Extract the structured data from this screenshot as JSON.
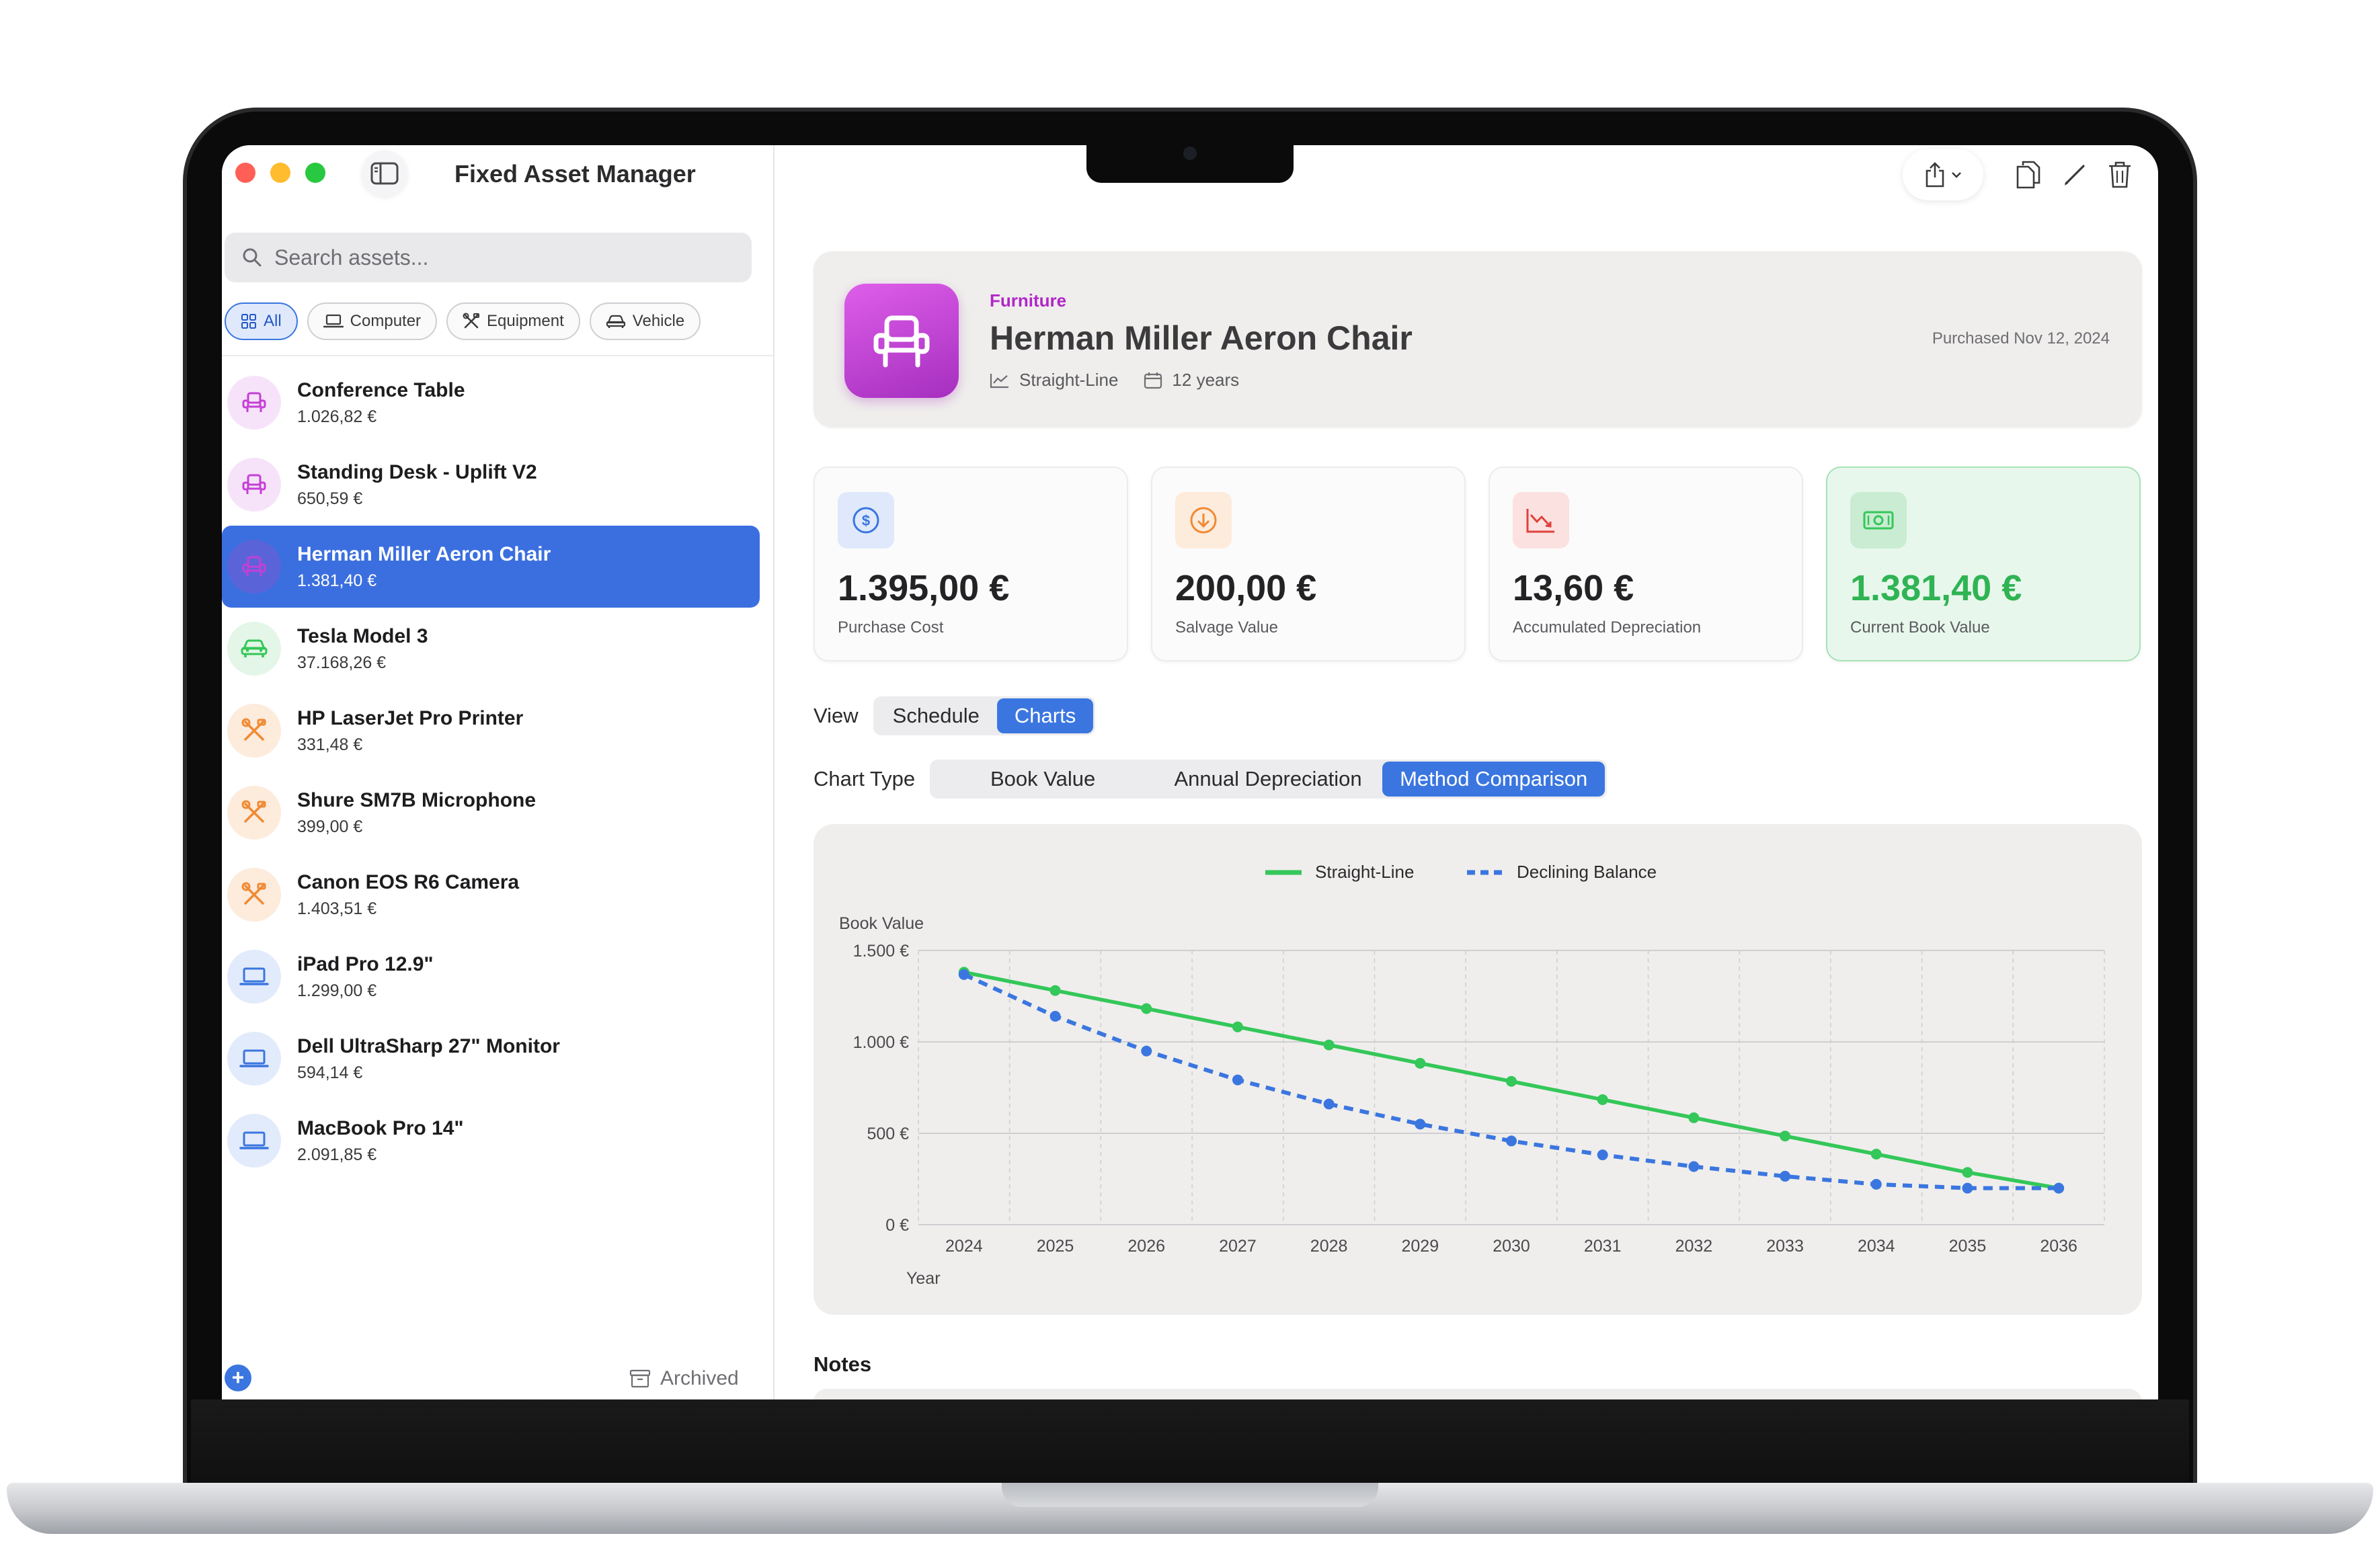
{
  "app": {
    "title": "Fixed Asset Manager"
  },
  "search": {
    "placeholder": "Search assets..."
  },
  "filters": [
    {
      "label": "All",
      "icon": "grid-icon",
      "active": true
    },
    {
      "label": "Computer",
      "icon": "laptop-icon",
      "active": false
    },
    {
      "label": "Equipment",
      "icon": "tools-icon",
      "active": false
    },
    {
      "label": "Vehicle",
      "icon": "car-icon",
      "active": false
    }
  ],
  "assets": [
    {
      "name": "Conference Table",
      "value": "1.026,82 €",
      "icon": "chair-icon",
      "color": "#c43fd6",
      "bg": "#f6e3f9",
      "selected": false
    },
    {
      "name": "Standing Desk - Uplift V2",
      "value": "650,59 €",
      "icon": "chair-icon",
      "color": "#c43fd6",
      "bg": "#f6e3f9",
      "selected": false
    },
    {
      "name": "Herman Miller Aeron Chair",
      "value": "1.381,40 €",
      "icon": "chair-icon",
      "color": "#c43fd6",
      "bg": "#5a64d8",
      "selected": true
    },
    {
      "name": "Tesla Model 3",
      "value": "37.168,26 €",
      "icon": "car-icon",
      "color": "#34c759",
      "bg": "#e3f6e7",
      "selected": false
    },
    {
      "name": "HP LaserJet Pro Printer",
      "value": "331,48 €",
      "icon": "tools-icon",
      "color": "#f08a33",
      "bg": "#fdebdc",
      "selected": false
    },
    {
      "name": "Shure SM7B Microphone",
      "value": "399,00 €",
      "icon": "tools-icon",
      "color": "#f08a33",
      "bg": "#fdebdc",
      "selected": false
    },
    {
      "name": "Canon EOS R6 Camera",
      "value": "1.403,51 €",
      "icon": "tools-icon",
      "color": "#f08a33",
      "bg": "#fdebdc",
      "selected": false
    },
    {
      "name": "iPad Pro 12.9\"",
      "value": "1.299,00 €",
      "icon": "laptop-icon",
      "color": "#3b76e0",
      "bg": "#e2ebfb",
      "selected": false
    },
    {
      "name": "Dell UltraSharp 27\" Monitor",
      "value": "594,14 €",
      "icon": "laptop-icon",
      "color": "#3b76e0",
      "bg": "#e2ebfb",
      "selected": false
    },
    {
      "name": "MacBook Pro 14\"",
      "value": "2.091,85 €",
      "icon": "laptop-icon",
      "color": "#3b76e0",
      "bg": "#e2ebfb",
      "selected": false
    }
  ],
  "sidebar_footer": {
    "archived_label": "Archived"
  },
  "detail": {
    "category": "Furniture",
    "title": "Herman Miller Aeron Chair",
    "method": "Straight-Line",
    "useful_life": "12 years",
    "purchased": "Purchased Nov 12, 2024",
    "accent_color": "#b126c9"
  },
  "stats": [
    {
      "value": "1.395,00 €",
      "label": "Purchase Cost",
      "icon": "dollar-circle-icon",
      "color": "#3b76e0",
      "bg": "#dfe9fb"
    },
    {
      "value": "200,00 €",
      "label": "Salvage Value",
      "icon": "arrow-down-circle-icon",
      "color": "#f08a33",
      "bg": "#fdebdc"
    },
    {
      "value": "13,60 €",
      "label": "Accumulated Depreciation",
      "icon": "chart-down-icon",
      "color": "#e0413b",
      "bg": "#fbe1e0"
    },
    {
      "value": "1.381,40 €",
      "label": "Current Book Value",
      "icon": "banknote-icon",
      "color": "#34c759",
      "bg": "#d3f0da",
      "highlight": true
    }
  ],
  "view": {
    "label": "View",
    "options": [
      "Schedule",
      "Charts"
    ],
    "selected": "Charts"
  },
  "chart_type": {
    "label": "Chart Type",
    "options": [
      "Book Value",
      "Annual Depreciation",
      "Method Comparison"
    ],
    "selected": "Method Comparison"
  },
  "notes": {
    "label": "Notes"
  },
  "chart_data": {
    "type": "line",
    "xlabel": "Year",
    "ylabel": "Book Value",
    "x": [
      "2024",
      "2025",
      "2026",
      "2027",
      "2028",
      "2029",
      "2030",
      "2031",
      "2032",
      "2033",
      "2034",
      "2035",
      "2036"
    ],
    "ylim": [
      0,
      1500
    ],
    "yticks": [
      0,
      500,
      1000,
      1500
    ],
    "ytick_labels": [
      "0 €",
      "500 €",
      "1.000 €",
      "1.500 €"
    ],
    "grid": true,
    "legend": "top-center",
    "series": [
      {
        "name": "Straight-Line",
        "color": "#34c759",
        "style": "solid",
        "values": [
          1381,
          1281,
          1182,
          1082,
          983,
          883,
          784,
          684,
          585,
          485,
          386,
          286,
          200
        ]
      },
      {
        "name": "Declining Balance",
        "color": "#3b76e0",
        "style": "dashed",
        "values": [
          1368,
          1140,
          950,
          792,
          660,
          550,
          458,
          382,
          318,
          265,
          221,
          200,
          200
        ]
      }
    ]
  }
}
